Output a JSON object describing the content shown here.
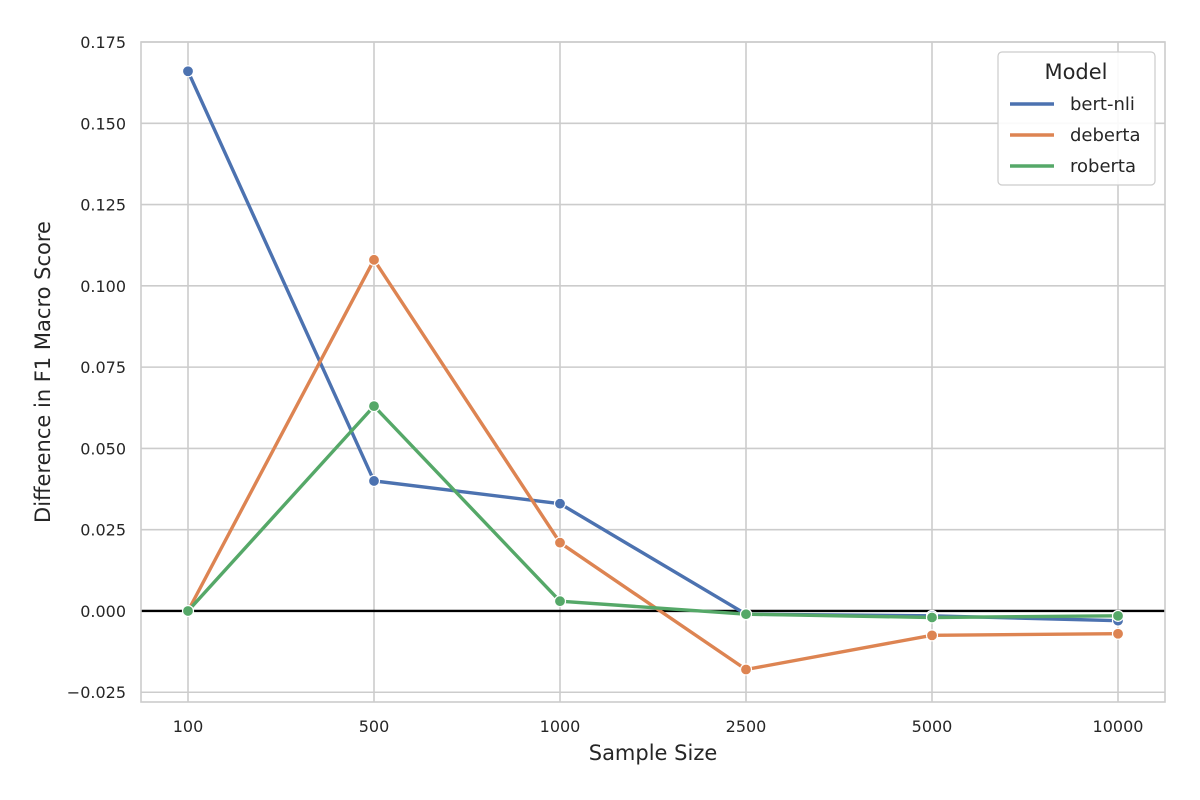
{
  "chart_data": {
    "type": "line",
    "xlabel": "Sample Size",
    "ylabel": "Difference in F1 Macro Score",
    "categories": [
      "100",
      "500",
      "1000",
      "2500",
      "5000",
      "10000"
    ],
    "ylim": [
      -0.028,
      0.175
    ],
    "yticks": [
      -0.025,
      0.0,
      0.025,
      0.05,
      0.075,
      0.1,
      0.125,
      0.15,
      0.175
    ],
    "ytick_labels": [
      "−0.025",
      "0.000",
      "0.025",
      "0.050",
      "0.075",
      "0.100",
      "0.125",
      "0.150",
      "0.175"
    ],
    "grid": true,
    "reference_line_y": 0,
    "legend": {
      "title": "Model",
      "position": "top-right"
    },
    "series": [
      {
        "name": "bert-nli",
        "color": "#4c72b0",
        "values": [
          0.166,
          0.04,
          0.033,
          -0.001,
          -0.0015,
          -0.003
        ]
      },
      {
        "name": "deberta",
        "color": "#dd8452",
        "values": [
          0.0,
          0.108,
          0.021,
          -0.018,
          -0.0075,
          -0.007
        ]
      },
      {
        "name": "roberta",
        "color": "#55a868",
        "values": [
          0.0,
          0.063,
          0.003,
          -0.001,
          -0.002,
          -0.0015
        ]
      }
    ]
  }
}
